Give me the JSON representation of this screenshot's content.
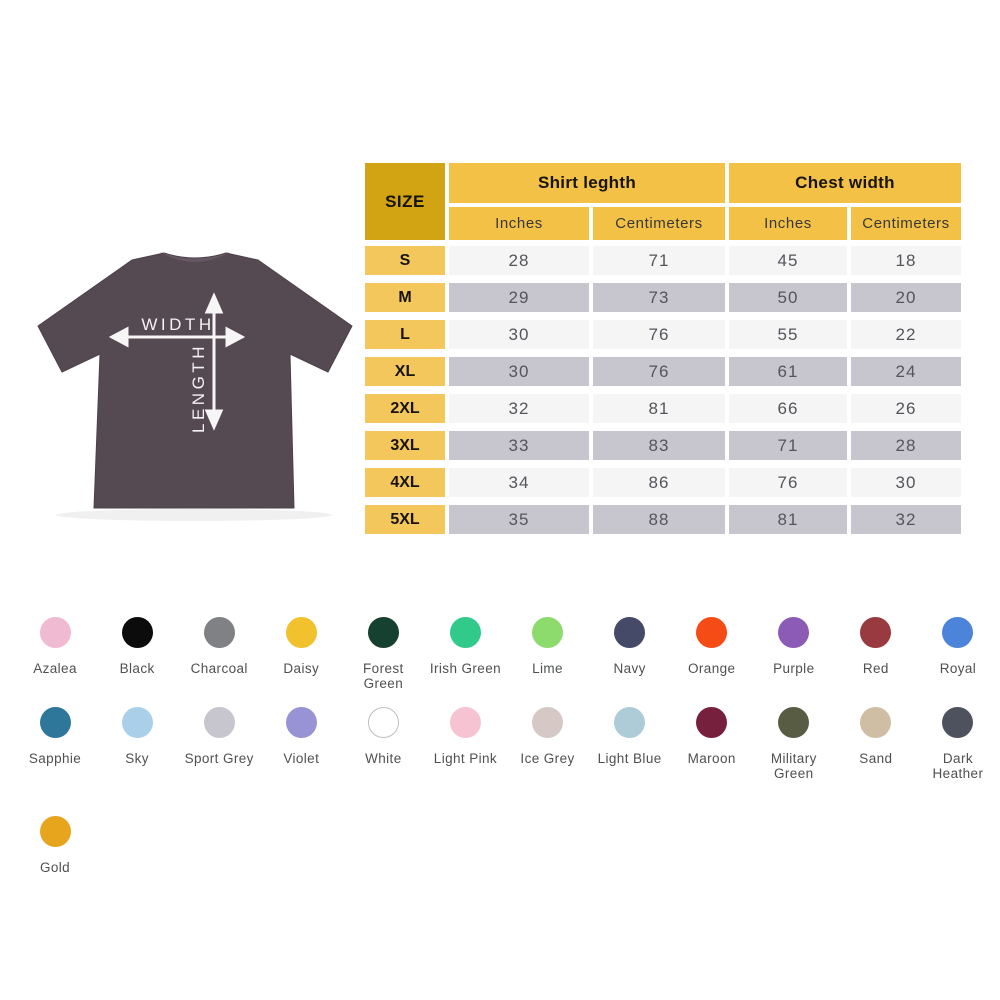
{
  "diagram": {
    "width_label": "WIDTH",
    "length_label": "LENGTH",
    "shirt_color": "#564a52",
    "arrow_color": "#f7f5f6"
  },
  "table": {
    "size_header": "SIZE",
    "groups": [
      {
        "label": "Shirt leghth"
      },
      {
        "label": "Chest width"
      }
    ],
    "sub_headers": [
      "Inches",
      "Centimeters",
      "Inches",
      "Centimeters"
    ],
    "rows": [
      {
        "size": "S",
        "values": [
          "28",
          "71",
          "45",
          "18"
        ]
      },
      {
        "size": "M",
        "values": [
          "29",
          "73",
          "50",
          "20"
        ]
      },
      {
        "size": "L",
        "values": [
          "30",
          "76",
          "55",
          "22"
        ]
      },
      {
        "size": "XL",
        "values": [
          "30",
          "76",
          "61",
          "24"
        ]
      },
      {
        "size": "2XL",
        "values": [
          "32",
          "81",
          "66",
          "26"
        ]
      },
      {
        "size": "3XL",
        "values": [
          "33",
          "83",
          "71",
          "28"
        ]
      },
      {
        "size": "4XL",
        "values": [
          "34",
          "86",
          "76",
          "30"
        ]
      },
      {
        "size": "5XL",
        "values": [
          "35",
          "88",
          "81",
          "32"
        ]
      }
    ],
    "accent_dark": "#d2a413",
    "accent": "#f3c145",
    "accent_light": "#f3c75c",
    "row_light": "#f5f5f6",
    "row_gray": "#c7c6ce"
  },
  "chart_data": {
    "type": "table",
    "title": "Shirt size chart",
    "columns": [
      "SIZE",
      "Shirt leghth Inches",
      "Shirt leghth Centimeters",
      "Chest width Inches",
      "Chest width Centimeters"
    ],
    "rows": [
      [
        "S",
        28,
        71,
        45,
        18
      ],
      [
        "M",
        29,
        73,
        50,
        20
      ],
      [
        "L",
        30,
        76,
        55,
        22
      ],
      [
        "XL",
        30,
        76,
        61,
        24
      ],
      [
        "2XL",
        32,
        81,
        66,
        26
      ],
      [
        "3XL",
        33,
        83,
        71,
        28
      ],
      [
        "4XL",
        34,
        86,
        76,
        30
      ],
      [
        "5XL",
        35,
        88,
        81,
        32
      ]
    ]
  },
  "swatches": {
    "rows": [
      [
        {
          "name": "azalea",
          "label": "Azalea",
          "color": "#f1bad3"
        },
        {
          "name": "black",
          "label": "Black",
          "color": "#0c0c0c"
        },
        {
          "name": "charcoal",
          "label": "Charcoal",
          "color": "#7f8184"
        },
        {
          "name": "daisy",
          "label": "Daisy",
          "color": "#f2c12e"
        },
        {
          "name": "forest-green",
          "label": "Forest Green",
          "color": "#16402f"
        },
        {
          "name": "irish-green",
          "label": "Irish Green",
          "color": "#31ca8b"
        },
        {
          "name": "lime",
          "label": "Lime",
          "color": "#8edb6d"
        },
        {
          "name": "navy",
          "label": "Navy",
          "color": "#454a68"
        },
        {
          "name": "orange",
          "label": "Orange",
          "color": "#f54b15"
        },
        {
          "name": "purple",
          "label": "Purple",
          "color": "#8c5bb6"
        },
        {
          "name": "red",
          "label": "Red",
          "color": "#983a40"
        },
        {
          "name": "royal",
          "label": "Royal",
          "color": "#4c84da"
        }
      ],
      [
        {
          "name": "sapphie",
          "label": "Sapphie",
          "color": "#2f769b"
        },
        {
          "name": "sky",
          "label": "Sky",
          "color": "#aacfe9"
        },
        {
          "name": "sport-grey",
          "label": "Sport Grey",
          "color": "#c7c6ce"
        },
        {
          "name": "violet",
          "label": "Violet",
          "color": "#9793d4"
        },
        {
          "name": "white",
          "label": "White",
          "color": "#ffffff",
          "border": "#bfbfbf"
        },
        {
          "name": "light-pink",
          "label": "Light Pink",
          "color": "#f6c3d3"
        },
        {
          "name": "ice-grey",
          "label": "Ice Grey",
          "color": "#d6c9c5"
        },
        {
          "name": "light-blue",
          "label": "Light Blue",
          "color": "#aeccd7"
        },
        {
          "name": "maroon",
          "label": "Maroon",
          "color": "#76203d"
        },
        {
          "name": "military-green",
          "label": "Military\nGreen",
          "color": "#585c43"
        },
        {
          "name": "sand",
          "label": "Sand",
          "color": "#cfbda4"
        },
        {
          "name": "dark-heather",
          "label": "Dark\nHeather",
          "color": "#4e525e"
        }
      ],
      [
        {
          "name": "gold",
          "label": "Gold",
          "color": "#e7a41d"
        }
      ]
    ]
  }
}
